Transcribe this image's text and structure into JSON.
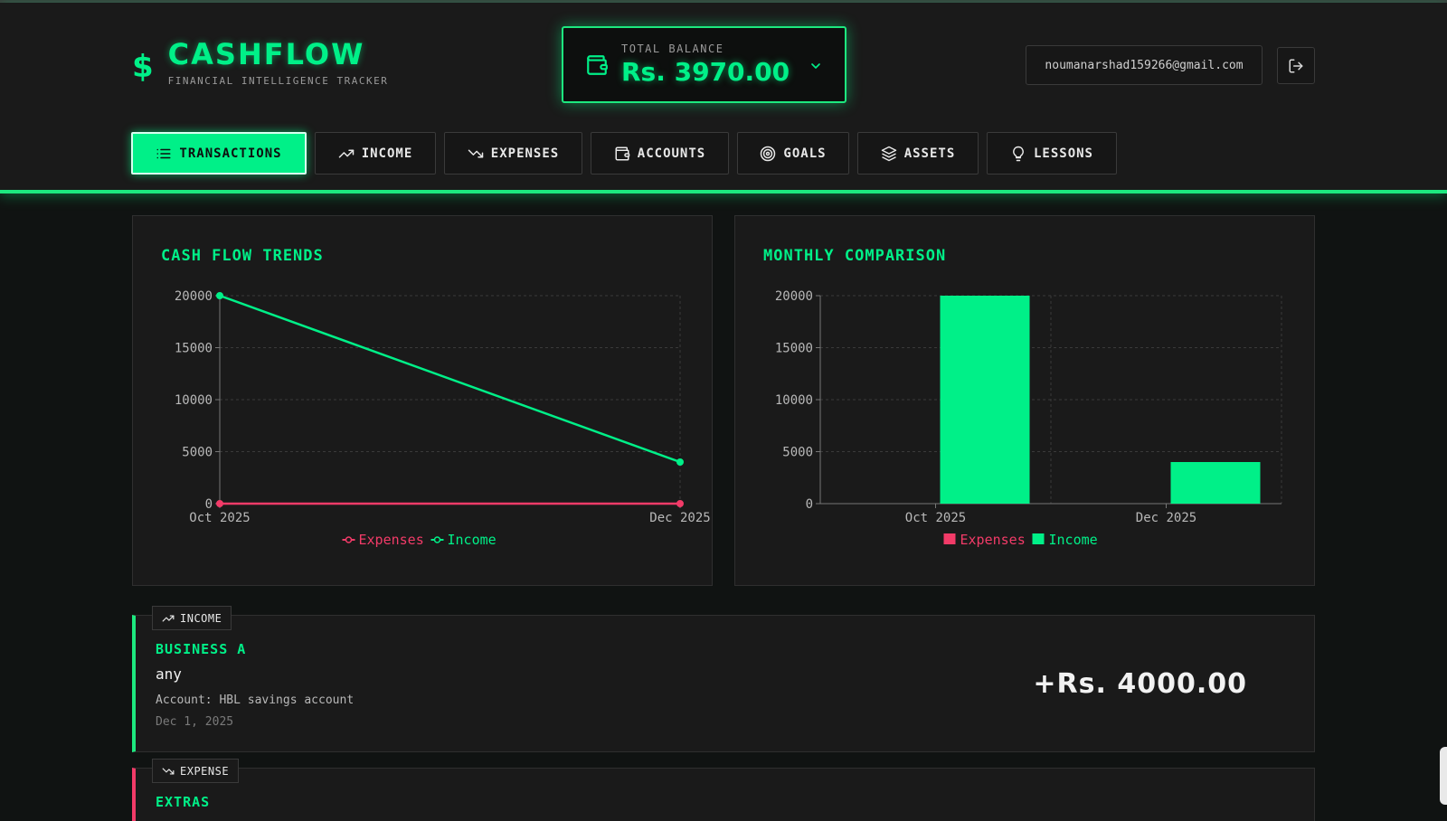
{
  "brand": {
    "title": "CASHFLOW",
    "subtitle": "FINANCIAL INTELLIGENCE TRACKER",
    "icon": "dollar-icon"
  },
  "balance": {
    "label": "TOTAL BALANCE",
    "value": "Rs. 3970.00",
    "icon": "wallet-icon"
  },
  "user": {
    "email": "noumanarshad159266@gmail.com"
  },
  "tabs": [
    {
      "label": "TRANSACTIONS",
      "icon": "list-icon",
      "active": true
    },
    {
      "label": "INCOME",
      "icon": "trending-up-icon",
      "active": false
    },
    {
      "label": "EXPENSES",
      "icon": "trending-down-icon",
      "active": false
    },
    {
      "label": "ACCOUNTS",
      "icon": "wallet-icon",
      "active": false
    },
    {
      "label": "GOALS",
      "icon": "target-icon",
      "active": false
    },
    {
      "label": "ASSETS",
      "icon": "layers-icon",
      "active": false
    },
    {
      "label": "LESSONS",
      "icon": "lightbulb-icon",
      "active": false
    }
  ],
  "colors": {
    "accent": "#00f088",
    "expense": "#f23b68",
    "income": "#00f088"
  },
  "chart_data": [
    {
      "type": "line",
      "title": "CASH FLOW TRENDS",
      "categories": [
        "Oct 2025",
        "Dec 2025"
      ],
      "series": [
        {
          "name": "Expenses",
          "values": [
            0,
            0
          ]
        },
        {
          "name": "Income",
          "values": [
            20000,
            4000
          ]
        }
      ],
      "yticks": [
        0,
        5000,
        10000,
        15000,
        20000
      ],
      "ylim": [
        0,
        20000
      ],
      "grid": true,
      "legend": "bottom"
    },
    {
      "type": "bar",
      "title": "MONTHLY COMPARISON",
      "categories": [
        "Oct 2025",
        "Dec 2025"
      ],
      "series": [
        {
          "name": "Expenses",
          "values": [
            0,
            0
          ]
        },
        {
          "name": "Income",
          "values": [
            20000,
            4000
          ]
        }
      ],
      "yticks": [
        0,
        5000,
        10000,
        15000,
        20000
      ],
      "ylim": [
        0,
        20000
      ],
      "grid": true,
      "legend": "bottom"
    }
  ],
  "transactions": [
    {
      "type_label": "INCOME",
      "category": "BUSINESS A",
      "description": "any",
      "account": "Account: HBL savings account",
      "date": "Dec 1, 2025",
      "amount": "+Rs. 4000.00"
    },
    {
      "type_label": "EXPENSE",
      "category": "EXTRAS"
    }
  ]
}
